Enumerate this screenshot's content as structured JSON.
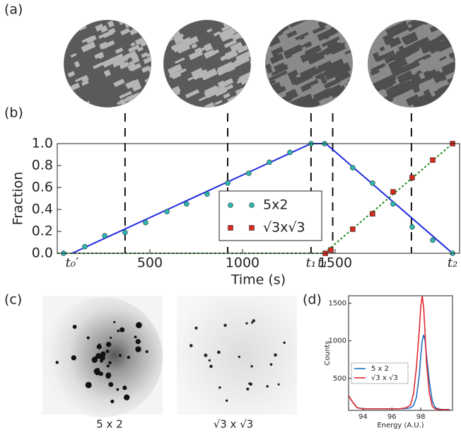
{
  "panel_labels": [
    "(a)",
    "(b)",
    "(c)",
    "(d)"
  ],
  "diffraction_captions": [
    "5 x 2",
    "√3 x √3"
  ],
  "chart_data": [
    {
      "type": "scatter",
      "xlabel": "Time (s)",
      "ylabel": "Fraction",
      "xlim": [
        0,
        2172
      ],
      "ylim": [
        0,
        1.0
      ],
      "xticks": [
        500,
        1000,
        1500
      ],
      "yticks": [
        {
          "value": 0,
          "label": "0.0"
        },
        {
          "value": 0.2,
          "label": "0.2"
        },
        {
          "value": 0.4,
          "label": "0.4"
        },
        {
          "value": 0.6,
          "label": "0.6"
        },
        {
          "value": 0.8,
          "label": "0.8"
        },
        {
          "value": 1.0,
          "label": "1.0"
        }
      ],
      "legend": "center",
      "series": [
        {
          "name": "5x2",
          "color": "#2fb5b0",
          "marker": "circle",
          "x": [
            34,
            149,
            256,
            366,
            477,
            592,
            698,
            809,
            920,
            1034,
            1145,
            1256,
            1370,
            1443,
            1595,
            1702,
            1813,
            1916,
            2027,
            2134
          ],
          "values": [
            0,
            0.06,
            0.16,
            0.19,
            0.28,
            0.38,
            0.45,
            0.54,
            0.64,
            0.73,
            0.83,
            0.92,
            1.0,
            1.0,
            0.78,
            0.64,
            0.45,
            0.24,
            0.12,
            0.0
          ]
        },
        {
          "name": "√3x√3",
          "color": "#d42a1e",
          "marker": "square",
          "x": [
            1447,
            1477,
            1595,
            1702,
            1813,
            1916,
            2027,
            2134
          ],
          "values": [
            0.0,
            0.03,
            0.22,
            0.36,
            0.56,
            0.69,
            0.85,
            1.0
          ]
        }
      ],
      "fits": [
        {
          "color": "#1f2be0",
          "style": "solid",
          "x": [
            80,
            1370,
            1450,
            2134
          ],
          "values": [
            0,
            1,
            1,
            0
          ]
        },
        {
          "color": "#1f8a1f",
          "style": "dotted",
          "x": [
            0,
            1440,
            2134
          ],
          "values": [
            0,
            0,
            1
          ]
        }
      ],
      "image_times": [
        366,
        920,
        1370,
        1487,
        1912
      ],
      "annotations": [
        {
          "text": "t₀′",
          "x": 80
        },
        {
          "text": "t₁",
          "x": 1370
        },
        {
          "text": "t₁′",
          "x": 1440
        },
        {
          "text": "t₂",
          "x": 2134
        }
      ]
    },
    {
      "type": "line",
      "xlabel": "Energy (A.U.)",
      "ylabel": "Counts",
      "xlim": [
        93,
        100.2
      ],
      "ylim": [
        75,
        1600
      ],
      "xticks": [
        94,
        96,
        98
      ],
      "yticks": [
        500,
        1000,
        1500
      ],
      "legend": "upper left",
      "x": [
        93.0,
        93.3,
        93.6,
        94,
        94.5,
        95,
        95.5,
        96,
        96.5,
        97,
        97.3,
        97.5,
        97.7,
        97.9,
        98.0,
        98.1,
        98.2,
        98.3,
        98.4,
        98.6,
        98.8,
        99.0,
        99.3,
        99.6,
        100
      ],
      "series": [
        {
          "name": "5 x 2",
          "color": "#1f6fc0",
          "values": [
            270,
            180,
            110,
            95,
            95,
            95,
            95,
            95,
            95,
            100,
            110,
            140,
            250,
            550,
            800,
            1000,
            1080,
            1000,
            800,
            450,
            200,
            110,
            90,
            85,
            85
          ]
        },
        {
          "name": "√3 x √3",
          "color": "#e0282e",
          "values": [
            270,
            180,
            110,
            95,
            95,
            95,
            95,
            95,
            95,
            110,
            150,
            300,
            650,
            1150,
            1450,
            1600,
            1450,
            1100,
            700,
            300,
            130,
            95,
            85,
            85,
            85
          ]
        }
      ]
    }
  ]
}
